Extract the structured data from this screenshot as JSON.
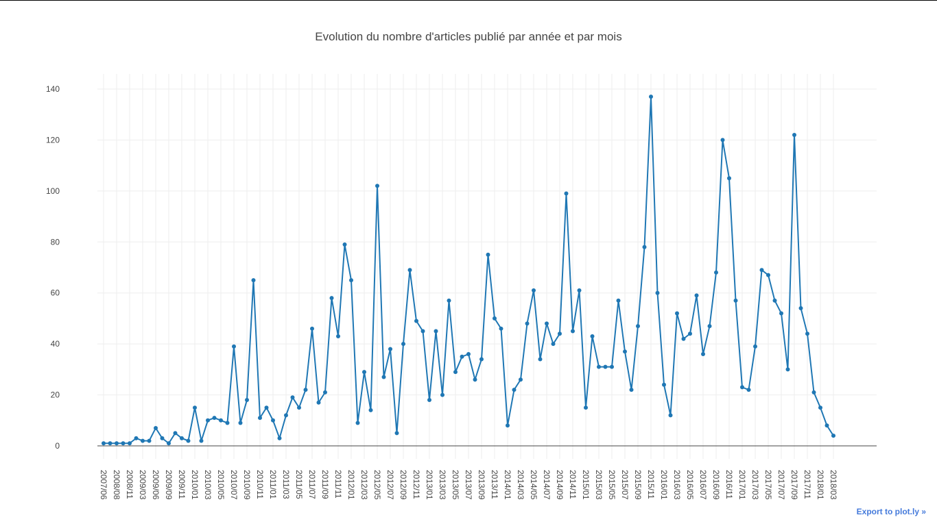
{
  "chart_data": {
    "type": "line",
    "title": "Evolution du nombre d'articles publié par année et par mois",
    "categories": [
      "2007/06",
      null,
      "2008/08",
      null,
      "2008/11",
      null,
      "2009/03",
      null,
      "2009/06",
      null,
      "2009/09",
      null,
      "2009/11",
      null,
      "2010/01",
      null,
      "2010/03",
      null,
      "2010/05",
      null,
      "2010/07",
      null,
      "2010/09",
      null,
      "2010/11",
      null,
      "2011/01",
      null,
      "2011/03",
      null,
      "2011/05",
      null,
      "2011/07",
      null,
      "2011/09",
      null,
      "2011/11",
      null,
      "2012/01",
      null,
      "2012/03",
      null,
      "2012/05",
      null,
      "2012/07",
      null,
      "2012/09",
      null,
      "2012/11",
      null,
      "2013/01",
      null,
      "2013/03",
      null,
      "2013/05",
      null,
      "2013/07",
      null,
      "2013/09",
      null,
      "2013/11",
      null,
      "2014/01",
      null,
      "2014/03",
      null,
      "2014/05",
      null,
      "2014/07",
      null,
      "2014/09",
      null,
      "2014/11",
      null,
      "2015/01",
      null,
      "2015/03",
      null,
      "2015/05",
      null,
      "2015/07",
      null,
      "2015/09",
      null,
      "2015/11",
      null,
      "2016/01",
      null,
      "2016/03",
      null,
      "2016/05",
      null,
      "2016/07",
      null,
      "2016/09",
      null,
      "2016/11",
      null,
      "2017/01",
      null,
      "2017/03",
      null,
      "2017/05",
      null,
      "2017/07",
      null,
      "2017/09",
      null,
      "2017/11",
      null,
      "2018/01",
      null,
      "2018/03"
    ],
    "series": [
      {
        "color": "#1f77b4",
        "values": [
          1,
          1,
          1,
          1,
          1,
          3,
          2,
          2,
          7,
          3,
          1,
          5,
          3,
          2,
          15,
          2,
          10,
          11,
          10,
          9,
          39,
          9,
          18,
          65,
          11,
          15,
          10,
          3,
          12,
          19,
          15,
          22,
          46,
          17,
          21,
          58,
          43,
          79,
          65,
          9,
          29,
          14,
          102,
          27,
          38,
          5,
          40,
          69,
          49,
          45,
          18,
          45,
          20,
          57,
          29,
          35,
          36,
          26,
          34,
          75,
          50,
          46,
          8,
          22,
          26,
          48,
          61,
          34,
          48,
          40,
          44,
          99,
          45,
          61,
          15,
          43,
          31,
          31,
          31,
          57,
          37,
          22,
          47,
          78,
          137,
          60,
          24,
          12,
          52,
          42,
          44,
          59,
          36,
          47,
          68,
          120,
          105,
          57,
          23,
          22,
          39,
          69,
          67,
          57,
          52,
          30,
          122,
          54,
          44,
          21,
          15,
          8,
          4
        ]
      }
    ],
    "ylim": [
      -5.1,
      145.9
    ],
    "yticks": [
      0,
      20,
      40,
      60,
      80,
      100,
      120,
      140
    ],
    "grid": true,
    "link": "Export to plot.ly »"
  }
}
